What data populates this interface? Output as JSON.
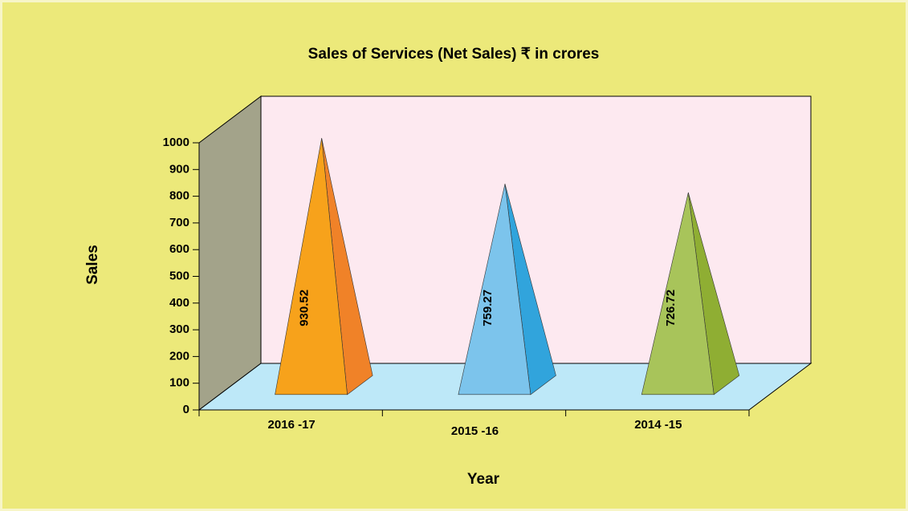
{
  "chart_data": {
    "type": "pyramid",
    "title": "Sales of Services (Net Sales) ₹ in crores",
    "x_label": "Year",
    "y_label": "Sales",
    "categories": [
      "2016 -17",
      "2015 -16",
      "2014 -15"
    ],
    "values": [
      930.52,
      759.27,
      726.72
    ],
    "colors": [
      "#f7a21b",
      "#7cc4ec",
      "#a8c45a"
    ],
    "side_colors": [
      "#f08228",
      "#31a4dc",
      "#8fae33"
    ],
    "ylim": [
      0,
      1000
    ],
    "yticks": [
      0,
      100,
      200,
      300,
      400,
      500,
      600,
      700,
      800,
      900,
      1000
    ]
  }
}
